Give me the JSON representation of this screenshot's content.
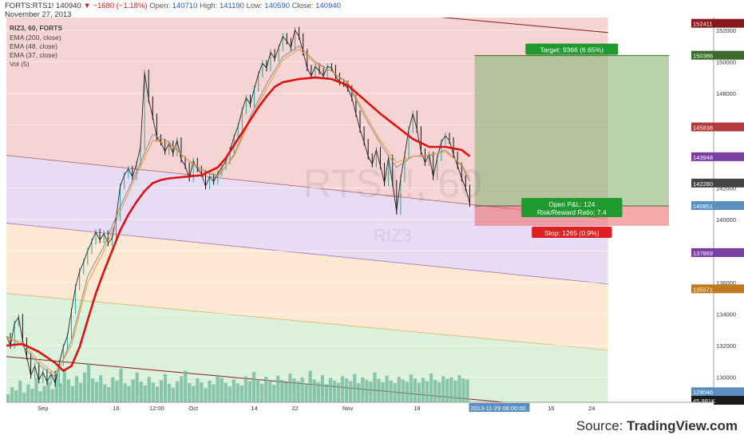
{
  "header": {
    "symbol_line": "FORTS:RTS1! 140940",
    "change": "▼ −1680 (−1.18%)",
    "open_label": "Open:",
    "open": "140710",
    "high_label": "High:",
    "high": "141190",
    "low_label": "Low:",
    "low": "140590",
    "close_label": "Close:",
    "close": "140940",
    "date": "November 27, 2013"
  },
  "legend": {
    "title": "RIZ3, 60, FORTS",
    "items": [
      "EMA (200, close)",
      "EMA (48, close)",
      "EMA (37, close)",
      "Vol (5)"
    ]
  },
  "watermark": {
    "main": "RTS1!, 60",
    "sub": "RIZ3"
  },
  "position": {
    "target_label": "Target: 9366 (6.65%)",
    "pnl_label": "Open P&L: 124",
    "rr_label": "Risk/Reward Ratio: 7.4",
    "stop_label": "Stop: 1265 (0.9%)",
    "entry": 140851,
    "target": 150386,
    "stop": 139586,
    "box_x0": 57.6,
    "box_x1": 81.5
  },
  "time_scale_tag": "2013-11-29 08:00:00",
  "source": {
    "prefix": "Source: ",
    "brand": "TradingView.com"
  },
  "colors": {
    "ema200": "#dd1111",
    "ema48": "#e79a3a",
    "ema37": "#8a8a8a",
    "up": "#26a69a",
    "down": "#111111",
    "volume": "#6cb59b"
  },
  "chart_data": {
    "type": "line",
    "ylim": [
      128400,
      152800
    ],
    "xlim": [
      0,
      87
    ],
    "x_ticks": [
      {
        "x": 4.5,
        "label": "Sep"
      },
      {
        "x": 13.5,
        "label": "16"
      },
      {
        "x": 18.5,
        "label": "12:00"
      },
      {
        "x": 23,
        "label": "Oct"
      },
      {
        "x": 30.5,
        "label": "14"
      },
      {
        "x": 35.5,
        "label": "22"
      },
      {
        "x": 42,
        "label": "Nov"
      },
      {
        "x": 50.5,
        "label": "18"
      },
      {
        "x": 67,
        "label": "16"
      },
      {
        "x": 72,
        "label": "24"
      }
    ],
    "y_ticks": [
      130000,
      132000,
      134000,
      136000,
      138000,
      140000,
      142000,
      146000,
      148000,
      150000,
      152000
    ],
    "price_tags": [
      {
        "value": 152411,
        "label": "152411",
        "color": "#8a1a1a"
      },
      {
        "value": 150386,
        "label": "150386",
        "color": "#3a6b2a"
      },
      {
        "value": 145838,
        "label": "145838",
        "color": "#b33a3a"
      },
      {
        "value": 143948,
        "label": "143948",
        "color": "#7a3fa0"
      },
      {
        "value": 142280,
        "label": "142280",
        "color": "#444444"
      },
      {
        "value": 140851,
        "label": "140851",
        "color": "#5a8fbf"
      },
      {
        "value": 137869,
        "label": "137869",
        "color": "#7a3fa0"
      },
      {
        "value": 135571,
        "label": "135571",
        "color": "#c07a22"
      },
      {
        "value": 129046,
        "label": "129046",
        "color": "#5a8fbf"
      },
      {
        "value": 127300,
        "label": "77.025K",
        "color": "#26a69a"
      },
      {
        "value": 126500,
        "label": "45.981K",
        "color": "#1a1a1a"
      }
    ],
    "channels": [
      {
        "name": "",
        "fill": "#f4cccc",
        "line": "#a33333",
        "top": [
          [
            0,
            152800
          ],
          [
            74,
            152800
          ]
        ],
        "bottom": [
          [
            0,
            144050
          ],
          [
            74,
            140020
          ]
        ]
      },
      {
        "name": "",
        "fill": "#e3d6f2",
        "line": "#8844aa",
        "top": [
          [
            0,
            144050
          ],
          [
            74,
            140020
          ]
        ],
        "bottom": [
          [
            0,
            139750
          ],
          [
            74,
            135900
          ]
        ]
      },
      {
        "name": "",
        "fill": "#fde4cc",
        "line": "#e39a3a",
        "top": [
          [
            0,
            139750
          ],
          [
            74,
            135900
          ]
        ],
        "bottom": [
          [
            0,
            135300
          ],
          [
            74,
            131700
          ]
        ]
      },
      {
        "name": "",
        "fill": "#d6eed6",
        "line": "#3aa84a",
        "top": [
          [
            0,
            135300
          ],
          [
            74,
            131700
          ]
        ],
        "bottom": [
          [
            0,
            128400
          ],
          [
            74,
            128400
          ]
        ]
      }
    ],
    "trendlines": [
      {
        "points": [
          [
            37,
            153600
          ],
          [
            74,
            151850
          ]
        ],
        "color": "#8a1a1a"
      },
      {
        "points": [
          [
            52,
            153600
          ],
          [
            74,
            152950
          ]
        ],
        "color": "#3aa88a"
      },
      {
        "points": [
          [
            0,
            131300
          ],
          [
            74,
            127800
          ]
        ],
        "color": "#8a1a1a"
      }
    ],
    "close": [
      [
        0,
        132600
      ],
      [
        0.5,
        132000
      ],
      [
        1,
        133400
      ],
      [
        1.5,
        133800
      ],
      [
        2,
        132300
      ],
      [
        2.5,
        131300
      ],
      [
        3,
        130100
      ],
      [
        3.5,
        130700
      ],
      [
        4,
        129800
      ],
      [
        4.5,
        130300
      ],
      [
        5,
        129700
      ],
      [
        5.5,
        130200
      ],
      [
        6,
        129600
      ],
      [
        6.5,
        130900
      ],
      [
        7,
        131900
      ],
      [
        7.5,
        132600
      ],
      [
        8,
        134200
      ],
      [
        8.5,
        135700
      ],
      [
        9,
        136700
      ],
      [
        9.5,
        137300
      ],
      [
        10,
        138000
      ],
      [
        10.5,
        138600
      ],
      [
        11,
        139200
      ],
      [
        11.5,
        138700
      ],
      [
        12,
        139100
      ],
      [
        12.5,
        138500
      ],
      [
        13,
        138800
      ],
      [
        13.5,
        140100
      ],
      [
        14,
        142100
      ],
      [
        14.5,
        142800
      ],
      [
        15,
        143200
      ],
      [
        15.5,
        142700
      ],
      [
        16,
        143500
      ],
      [
        16.5,
        144600
      ],
      [
        17,
        149300
      ],
      [
        17.5,
        147600
      ],
      [
        18,
        146500
      ],
      [
        18.5,
        145200
      ],
      [
        19,
        144900
      ],
      [
        19.5,
        144300
      ],
      [
        20,
        144800
      ],
      [
        20.5,
        144200
      ],
      [
        21,
        145000
      ],
      [
        21.5,
        143800
      ],
      [
        22,
        143400
      ],
      [
        22.5,
        142600
      ],
      [
        23,
        143700
      ],
      [
        23.5,
        143200
      ],
      [
        24,
        142900
      ],
      [
        24.5,
        142100
      ],
      [
        25,
        142700
      ],
      [
        25.5,
        142400
      ],
      [
        26,
        142900
      ],
      [
        26.5,
        143300
      ],
      [
        27,
        143700
      ],
      [
        27.5,
        144400
      ],
      [
        28,
        145200
      ],
      [
        28.5,
        145900
      ],
      [
        29,
        146900
      ],
      [
        29.5,
        147700
      ],
      [
        30,
        147300
      ],
      [
        30.5,
        148300
      ],
      [
        31,
        149200
      ],
      [
        31.5,
        149900
      ],
      [
        32,
        149600
      ],
      [
        32.5,
        150600
      ],
      [
        33,
        150200
      ],
      [
        33.5,
        150900
      ],
      [
        34,
        151600
      ],
      [
        34.5,
        151300
      ],
      [
        35,
        150900
      ],
      [
        35.5,
        152000
      ],
      [
        36,
        151600
      ],
      [
        36.5,
        150600
      ],
      [
        37,
        149600
      ],
      [
        37.5,
        149100
      ],
      [
        38,
        149700
      ],
      [
        38.5,
        149400
      ],
      [
        39,
        149100
      ],
      [
        39.5,
        149700
      ],
      [
        40,
        149600
      ],
      [
        40.5,
        149100
      ],
      [
        41,
        148700
      ],
      [
        41.5,
        148600
      ],
      [
        42,
        148300
      ],
      [
        42.5,
        147700
      ],
      [
        43,
        146700
      ],
      [
        43.5,
        145700
      ],
      [
        44,
        144900
      ],
      [
        44.5,
        144000
      ],
      [
        45,
        143500
      ],
      [
        45.5,
        144400
      ],
      [
        46,
        143400
      ],
      [
        46.5,
        142300
      ],
      [
        47,
        143900
      ],
      [
        47.5,
        142300
      ],
      [
        48,
        140500
      ],
      [
        48.5,
        142600
      ],
      [
        49,
        144100
      ],
      [
        49.5,
        145700
      ],
      [
        50,
        146700
      ],
      [
        50.5,
        145700
      ],
      [
        51,
        144300
      ],
      [
        51.5,
        143600
      ],
      [
        52,
        144100
      ],
      [
        52.5,
        142700
      ],
      [
        53,
        143900
      ],
      [
        53.5,
        144900
      ],
      [
        54,
        145300
      ],
      [
        54.5,
        145000
      ],
      [
        55,
        144100
      ],
      [
        55.5,
        143400
      ],
      [
        56,
        142600
      ],
      [
        56.5,
        142000
      ],
      [
        57,
        141000
      ]
    ],
    "ema48": [
      [
        0,
        132500
      ],
      [
        2,
        132200
      ],
      [
        4,
        131000
      ],
      [
        6,
        130200
      ],
      [
        8,
        132000
      ],
      [
        10,
        136000
      ],
      [
        12,
        138000
      ],
      [
        14,
        140500
      ],
      [
        16,
        142800
      ],
      [
        18,
        145000
      ],
      [
        20,
        144800
      ],
      [
        22,
        143900
      ],
      [
        24,
        143200
      ],
      [
        26,
        142800
      ],
      [
        28,
        144000
      ],
      [
        30,
        146300
      ],
      [
        32,
        148300
      ],
      [
        34,
        150100
      ],
      [
        36,
        150800
      ],
      [
        38,
        149900
      ],
      [
        40,
        149400
      ],
      [
        42,
        148700
      ],
      [
        44,
        146800
      ],
      [
        46,
        145000
      ],
      [
        48,
        143600
      ],
      [
        50,
        144000
      ],
      [
        52,
        144100
      ],
      [
        54,
        144300
      ],
      [
        56,
        143500
      ],
      [
        57,
        142600
      ]
    ],
    "ema37": [
      [
        0,
        132600
      ],
      [
        2,
        132000
      ],
      [
        4,
        130800
      ],
      [
        6,
        130000
      ],
      [
        8,
        132300
      ],
      [
        10,
        136400
      ],
      [
        12,
        138300
      ],
      [
        14,
        140800
      ],
      [
        16,
        143000
      ],
      [
        18,
        145400
      ],
      [
        20,
        144900
      ],
      [
        22,
        143900
      ],
      [
        24,
        143100
      ],
      [
        26,
        142700
      ],
      [
        28,
        144100
      ],
      [
        30,
        146500
      ],
      [
        32,
        148600
      ],
      [
        34,
        150300
      ],
      [
        36,
        151000
      ],
      [
        38,
        150000
      ],
      [
        40,
        149400
      ],
      [
        42,
        148600
      ],
      [
        44,
        146600
      ],
      [
        46,
        144800
      ],
      [
        48,
        143300
      ],
      [
        50,
        144000
      ],
      [
        52,
        144000
      ],
      [
        54,
        144400
      ],
      [
        56,
        143400
      ],
      [
        57,
        142400
      ]
    ],
    "ema200": [
      [
        0,
        132000
      ],
      [
        2,
        132100
      ],
      [
        4,
        131600
      ],
      [
        6,
        130900
      ],
      [
        7,
        130400
      ],
      [
        8,
        130700
      ],
      [
        9,
        131900
      ],
      [
        10,
        133600
      ],
      [
        11,
        135300
      ],
      [
        12,
        136700
      ],
      [
        13,
        138000
      ],
      [
        14,
        139300
      ],
      [
        15,
        140300
      ],
      [
        16,
        141100
      ],
      [
        17,
        141800
      ],
      [
        18,
        142300
      ],
      [
        19,
        142500
      ],
      [
        20,
        142600
      ],
      [
        22,
        142700
      ],
      [
        24,
        142800
      ],
      [
        26,
        143300
      ],
      [
        27,
        143900
      ],
      [
        28,
        144700
      ],
      [
        29,
        145500
      ],
      [
        30,
        146300
      ],
      [
        31,
        147100
      ],
      [
        32,
        147800
      ],
      [
        33,
        148400
      ],
      [
        34,
        148700
      ],
      [
        36,
        148900
      ],
      [
        38,
        149000
      ],
      [
        40,
        148900
      ],
      [
        42,
        148500
      ],
      [
        44,
        147600
      ],
      [
        46,
        146700
      ],
      [
        48,
        145900
      ],
      [
        50,
        145100
      ],
      [
        52,
        144600
      ],
      [
        54,
        144600
      ],
      [
        56,
        144400
      ],
      [
        57,
        144000
      ]
    ],
    "volume": [
      0.15,
      0.28,
      0.22,
      0.4,
      0.18,
      0.33,
      0.25,
      0.45,
      0.2,
      0.3,
      0.38,
      0.24,
      0.52,
      0.35,
      0.6,
      0.42,
      0.3,
      0.48,
      0.36,
      0.55,
      0.72,
      0.44,
      0.38,
      0.5,
      0.33,
      0.28,
      0.46,
      0.4,
      0.62,
      0.35,
      0.3,
      0.42,
      0.55,
      0.38,
      0.31,
      0.47,
      0.36,
      0.29,
      0.41,
      0.52,
      0.34,
      0.27,
      0.39,
      0.48,
      0.58,
      0.35,
      0.3,
      0.44,
      0.37,
      0.26,
      0.4,
      0.33,
      0.51,
      0.45,
      0.36,
      0.29,
      0.42,
      0.35,
      0.31,
      0.48,
      0.39,
      0.56,
      0.43,
      0.34,
      0.47,
      0.38,
      0.32,
      0.49,
      0.41,
      0.36,
      0.53,
      0.44,
      0.39,
      0.46,
      0.35,
      0.58,
      0.42,
      0.37,
      0.5,
      0.33,
      0.45,
      0.4,
      0.36,
      0.48,
      0.44,
      0.39,
      0.52,
      0.35,
      0.46,
      0.41,
      0.38,
      0.55,
      0.43,
      0.37,
      0.49,
      0.4,
      0.35,
      0.47,
      0.42,
      0.38,
      0.51,
      0.44,
      0.36,
      0.45,
      0.39,
      0.53,
      0.41,
      0.37,
      0.48,
      0.43,
      0.46,
      0.4,
      0.5,
      0.44,
      0.42
    ]
  }
}
